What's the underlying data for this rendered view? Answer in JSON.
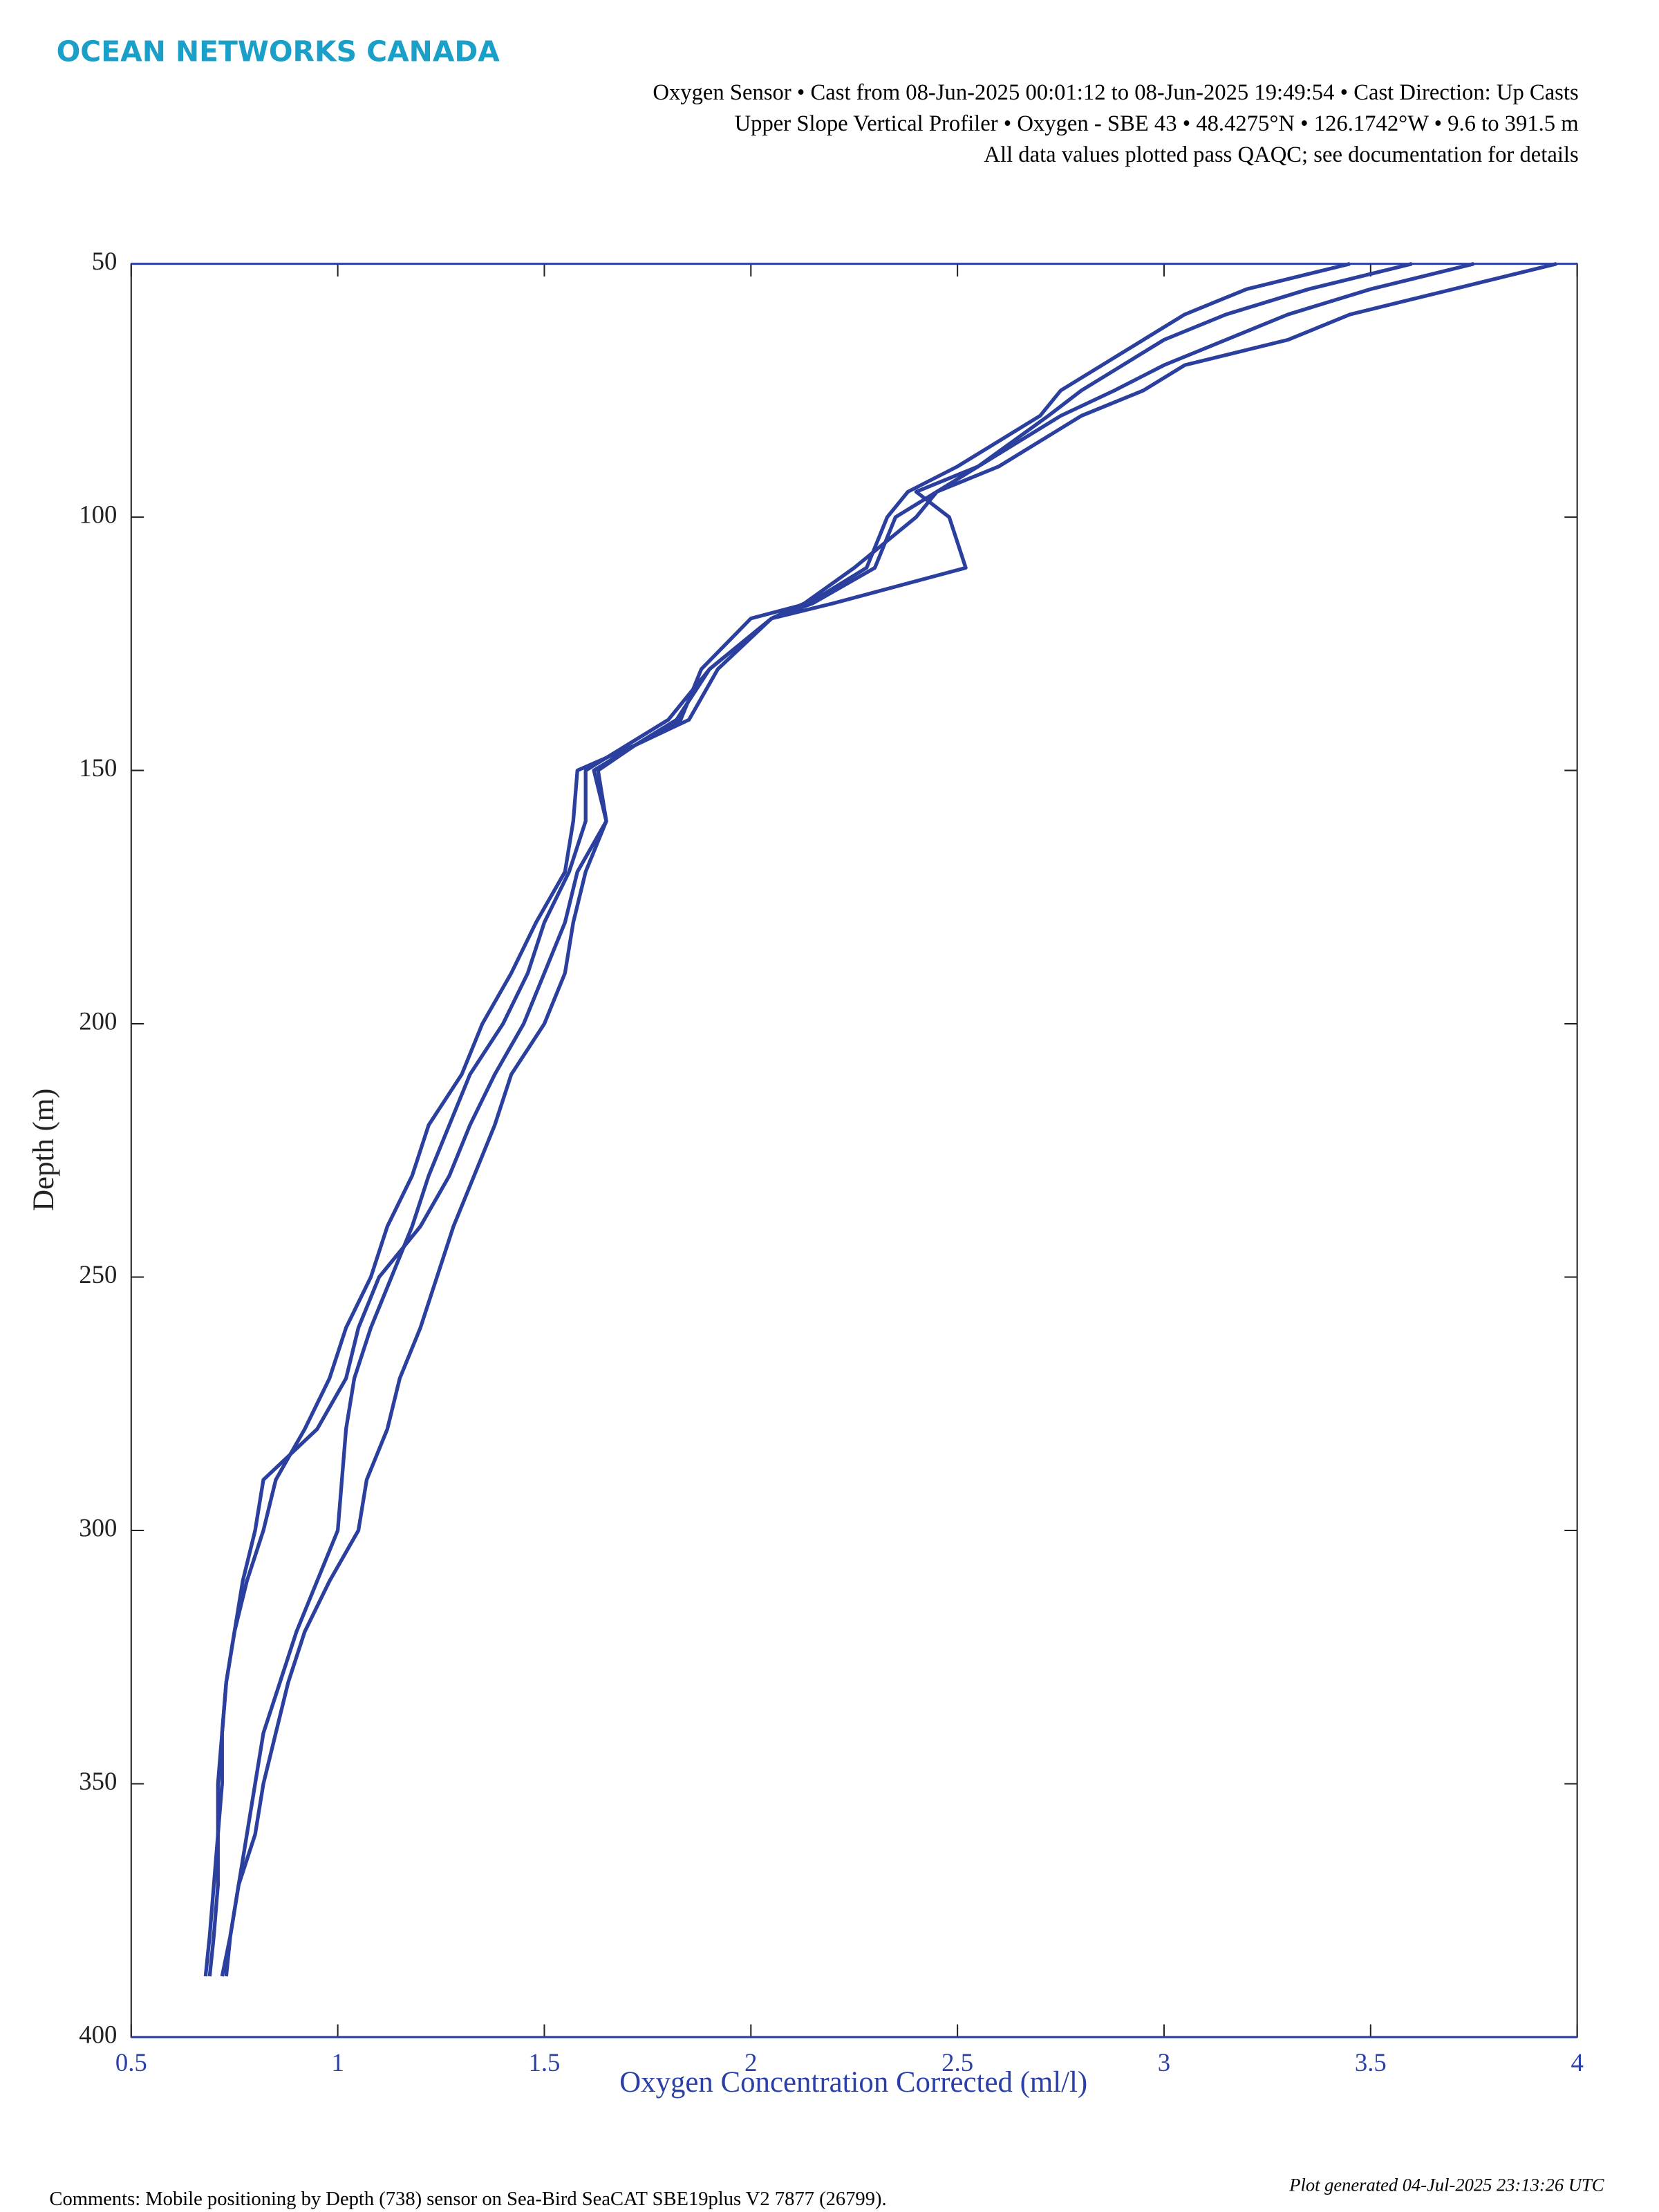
{
  "brand": "OCEAN NETWORKS CANADA",
  "chart_data": {
    "type": "line",
    "subtitle_lines": [
      "Oxygen Sensor • Cast from 08-Jun-2025 00:01:12 to 08-Jun-2025 19:49:54 • Cast Direction: Up Casts",
      "Upper Slope Vertical Profiler • Oxygen - SBE 43 • 48.4275°N • 126.1742°W • 9.6 to 391.5 m",
      "All data values plotted pass QAQC; see documentation for details"
    ],
    "xlabel": "Oxygen Concentration Corrected (ml/l)",
    "ylabel": "Depth (m)",
    "xlim": [
      0.5,
      4
    ],
    "xticks": [
      0.5,
      1,
      1.5,
      2,
      2.5,
      3,
      3.5,
      4
    ],
    "ylim": [
      50,
      400
    ],
    "yticks": [
      50,
      100,
      150,
      200,
      250,
      300,
      350,
      400
    ],
    "y_inverted": true,
    "series": [
      {
        "color": "#2b3f9e",
        "values": [
          50,
          55,
          60,
          65,
          70,
          75,
          80,
          90,
          95,
          100,
          110,
          117,
          120,
          130,
          140,
          145,
          150,
          160,
          170,
          180,
          190,
          200,
          210,
          220,
          230,
          240,
          250,
          260,
          270,
          280,
          290,
          300,
          310,
          320,
          330,
          340,
          350,
          360,
          370,
          380,
          388
        ],
        "x": [
          3.95,
          3.7,
          3.45,
          3.3,
          3.05,
          2.95,
          2.8,
          2.6,
          2.45,
          2.4,
          2.25,
          2.13,
          2.05,
          1.9,
          1.82,
          1.72,
          1.63,
          1.65,
          1.6,
          1.57,
          1.55,
          1.5,
          1.42,
          1.38,
          1.33,
          1.28,
          1.24,
          1.2,
          1.15,
          1.12,
          1.07,
          1.05,
          0.98,
          0.92,
          0.88,
          0.85,
          0.82,
          0.8,
          0.76,
          0.74,
          0.72
        ]
      },
      {
        "color": "#2b3f9e",
        "values": [
          50,
          55,
          60,
          65,
          70,
          75,
          80,
          90,
          95,
          100,
          110,
          117,
          120,
          130,
          140,
          145,
          150,
          160,
          170,
          180,
          190,
          200,
          210,
          220,
          230,
          240,
          250,
          260,
          270,
          280,
          290,
          300,
          310,
          320,
          330,
          340,
          350,
          360,
          370,
          380,
          388
        ],
        "x": [
          3.75,
          3.5,
          3.3,
          3.15,
          3.0,
          2.88,
          2.75,
          2.55,
          2.4,
          2.48,
          2.52,
          2.2,
          2.05,
          1.9,
          1.8,
          1.7,
          1.6,
          1.6,
          1.56,
          1.5,
          1.46,
          1.4,
          1.32,
          1.27,
          1.22,
          1.18,
          1.13,
          1.08,
          1.04,
          1.02,
          1.01,
          1.0,
          0.95,
          0.9,
          0.86,
          0.82,
          0.8,
          0.78,
          0.76,
          0.74,
          0.73
        ]
      },
      {
        "color": "#2b3f9e",
        "values": [
          50,
          55,
          60,
          65,
          70,
          75,
          80,
          90,
          95,
          100,
          110,
          117,
          120,
          130,
          140,
          145,
          150,
          160,
          170,
          180,
          190,
          200,
          210,
          220,
          230,
          240,
          250,
          260,
          270,
          280,
          290,
          300,
          310,
          320,
          330,
          340,
          350,
          360,
          370,
          380,
          388
        ],
        "x": [
          3.45,
          3.2,
          3.05,
          2.95,
          2.85,
          2.75,
          2.7,
          2.5,
          2.38,
          2.33,
          2.28,
          2.14,
          2.0,
          1.88,
          1.83,
          1.72,
          1.58,
          1.57,
          1.55,
          1.48,
          1.42,
          1.35,
          1.3,
          1.22,
          1.18,
          1.12,
          1.08,
          1.02,
          0.98,
          0.92,
          0.85,
          0.82,
          0.78,
          0.75,
          0.73,
          0.72,
          0.71,
          0.71,
          0.71,
          0.7,
          0.69
        ]
      },
      {
        "color": "#2b3f9e",
        "values": [
          50,
          55,
          60,
          65,
          70,
          75,
          80,
          90,
          95,
          100,
          110,
          117,
          120,
          130,
          140,
          145,
          150,
          160,
          170,
          180,
          190,
          200,
          210,
          220,
          230,
          240,
          250,
          260,
          270,
          280,
          290,
          300,
          310,
          320,
          330,
          340,
          350,
          360,
          370,
          380,
          388
        ],
        "x": [
          3.6,
          3.35,
          3.15,
          3.0,
          2.9,
          2.8,
          2.72,
          2.55,
          2.45,
          2.35,
          2.3,
          2.15,
          2.05,
          1.92,
          1.85,
          1.72,
          1.62,
          1.65,
          1.58,
          1.55,
          1.5,
          1.45,
          1.38,
          1.32,
          1.27,
          1.2,
          1.1,
          1.05,
          1.02,
          0.95,
          0.82,
          0.8,
          0.77,
          0.75,
          0.73,
          0.72,
          0.72,
          0.71,
          0.7,
          0.69,
          0.68
        ]
      }
    ]
  },
  "footer": {
    "generated": "Plot generated 04-Jul-2025 23:13:26 UTC",
    "comments": "Comments: Mobile positioning by Depth (738) sensor on Sea-Bird SeaCAT SBE19plus V2 7877 (26799)."
  }
}
